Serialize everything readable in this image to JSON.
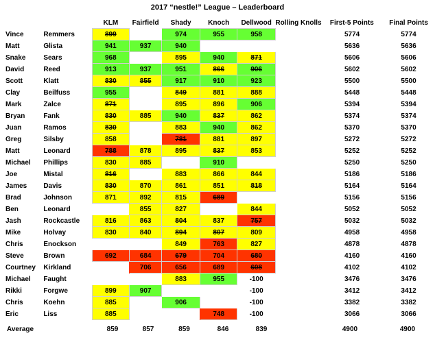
{
  "title": "2017 “nestle!” League – Leaderboard",
  "columns": [
    "KLM",
    "Fairfield",
    "Shady",
    "Knoch",
    "Dellwood",
    "Rolling Knolls",
    "First-5 Points",
    "Final Points"
  ],
  "rows": [
    {
      "first": "Vince",
      "last": "Remmers",
      "scores": [
        {
          "v": "899",
          "c": "y",
          "x": true
        },
        {
          "v": "",
          "c": "e"
        },
        {
          "v": "974",
          "c": "g"
        },
        {
          "v": "955",
          "c": "g"
        },
        {
          "v": "958",
          "c": "g"
        },
        {
          "v": "",
          "c": "e"
        }
      ],
      "first5": "5774",
      "final": "5774"
    },
    {
      "first": "Matt",
      "last": "Glista",
      "scores": [
        {
          "v": "941",
          "c": "g"
        },
        {
          "v": "937",
          "c": "g"
        },
        {
          "v": "940",
          "c": "g"
        },
        {
          "v": "",
          "c": "e"
        },
        {
          "v": "",
          "c": "e"
        },
        {
          "v": "",
          "c": "e"
        }
      ],
      "first5": "5636",
      "final": "5636"
    },
    {
      "first": "Snake",
      "last": "Sears",
      "scores": [
        {
          "v": "968",
          "c": "g"
        },
        {
          "v": "",
          "c": "e"
        },
        {
          "v": "895",
          "c": "y"
        },
        {
          "v": "940",
          "c": "g"
        },
        {
          "v": "871",
          "c": "y",
          "x": true
        },
        {
          "v": "",
          "c": "e"
        }
      ],
      "first5": "5606",
      "final": "5606"
    },
    {
      "first": "David",
      "last": "Reed",
      "scores": [
        {
          "v": "913",
          "c": "g"
        },
        {
          "v": "937",
          "c": "g"
        },
        {
          "v": "951",
          "c": "g"
        },
        {
          "v": "866",
          "c": "y",
          "x": true
        },
        {
          "v": "906",
          "c": "g",
          "x": true
        },
        {
          "v": "",
          "c": "e"
        }
      ],
      "first5": "5602",
      "final": "5602"
    },
    {
      "first": "Scott",
      "last": "Klatt",
      "scores": [
        {
          "v": "830",
          "c": "y",
          "x": true
        },
        {
          "v": "855",
          "c": "y",
          "x": true
        },
        {
          "v": "917",
          "c": "g"
        },
        {
          "v": "910",
          "c": "g"
        },
        {
          "v": "923",
          "c": "g"
        },
        {
          "v": "",
          "c": "e"
        }
      ],
      "first5": "5500",
      "final": "5500"
    },
    {
      "first": "Clay",
      "last": "Beilfuss",
      "scores": [
        {
          "v": "955",
          "c": "g"
        },
        {
          "v": "",
          "c": "e"
        },
        {
          "v": "849",
          "c": "y",
          "x": true
        },
        {
          "v": "881",
          "c": "y"
        },
        {
          "v": "888",
          "c": "y"
        },
        {
          "v": "",
          "c": "e"
        }
      ],
      "first5": "5448",
      "final": "5448"
    },
    {
      "first": "Mark",
      "last": "Zalce",
      "scores": [
        {
          "v": "871",
          "c": "y",
          "x": true
        },
        {
          "v": "",
          "c": "e"
        },
        {
          "v": "895",
          "c": "y"
        },
        {
          "v": "896",
          "c": "y"
        },
        {
          "v": "906",
          "c": "g"
        },
        {
          "v": "",
          "c": "e"
        }
      ],
      "first5": "5394",
      "final": "5394"
    },
    {
      "first": "Bryan",
      "last": "Fank",
      "scores": [
        {
          "v": "830",
          "c": "y",
          "x": true
        },
        {
          "v": "885",
          "c": "y"
        },
        {
          "v": "940",
          "c": "g"
        },
        {
          "v": "837",
          "c": "y",
          "x": true
        },
        {
          "v": "862",
          "c": "y"
        },
        {
          "v": "",
          "c": "e"
        }
      ],
      "first5": "5374",
      "final": "5374"
    },
    {
      "first": "Juan",
      "last": "Ramos",
      "scores": [
        {
          "v": "830",
          "c": "y",
          "x": true
        },
        {
          "v": "",
          "c": "e"
        },
        {
          "v": "883",
          "c": "y"
        },
        {
          "v": "940",
          "c": "g"
        },
        {
          "v": "862",
          "c": "y"
        },
        {
          "v": "",
          "c": "e"
        }
      ],
      "first5": "5370",
      "final": "5370"
    },
    {
      "first": "Greg",
      "last": "Silsby",
      "scores": [
        {
          "v": "858",
          "c": "y"
        },
        {
          "v": "",
          "c": "e"
        },
        {
          "v": "781",
          "c": "r",
          "x": true
        },
        {
          "v": "881",
          "c": "y"
        },
        {
          "v": "897",
          "c": "y"
        },
        {
          "v": "",
          "c": "e"
        }
      ],
      "first5": "5272",
      "final": "5272"
    },
    {
      "first": "Matt",
      "last": "Leonard",
      "scores": [
        {
          "v": "788",
          "c": "r",
          "x": true
        },
        {
          "v": "878",
          "c": "y"
        },
        {
          "v": "895",
          "c": "y"
        },
        {
          "v": "837",
          "c": "y",
          "x": true
        },
        {
          "v": "853",
          "c": "y"
        },
        {
          "v": "",
          "c": "e"
        }
      ],
      "first5": "5252",
      "final": "5252"
    },
    {
      "first": "Michael",
      "last": "Phillips",
      "scores": [
        {
          "v": "830",
          "c": "y"
        },
        {
          "v": "885",
          "c": "y"
        },
        {
          "v": "",
          "c": "e"
        },
        {
          "v": "910",
          "c": "g"
        },
        {
          "v": "",
          "c": "e"
        },
        {
          "v": "",
          "c": "e"
        }
      ],
      "first5": "5250",
      "final": "5250"
    },
    {
      "first": "Joe",
      "last": "Mistal",
      "scores": [
        {
          "v": "816",
          "c": "y",
          "x": true
        },
        {
          "v": "",
          "c": "e"
        },
        {
          "v": "883",
          "c": "y"
        },
        {
          "v": "866",
          "c": "y"
        },
        {
          "v": "844",
          "c": "y"
        },
        {
          "v": "",
          "c": "e"
        }
      ],
      "first5": "5186",
      "final": "5186"
    },
    {
      "first": "James",
      "last": "Davis",
      "scores": [
        {
          "v": "830",
          "c": "y",
          "x": true
        },
        {
          "v": "870",
          "c": "y"
        },
        {
          "v": "861",
          "c": "y"
        },
        {
          "v": "851",
          "c": "y"
        },
        {
          "v": "818",
          "c": "y",
          "x": true
        },
        {
          "v": "",
          "c": "e"
        }
      ],
      "first5": "5164",
      "final": "5164"
    },
    {
      "first": "Brad",
      "last": "Johnson",
      "scores": [
        {
          "v": "871",
          "c": "y"
        },
        {
          "v": "892",
          "c": "y"
        },
        {
          "v": "815",
          "c": "y"
        },
        {
          "v": "689",
          "c": "r",
          "x": true
        },
        {
          "v": "",
          "c": "e"
        },
        {
          "v": "",
          "c": "e"
        }
      ],
      "first5": "5156",
      "final": "5156"
    },
    {
      "first": "Ben",
      "last": "Leonard",
      "scores": [
        {
          "v": "",
          "c": "e"
        },
        {
          "v": "855",
          "c": "y"
        },
        {
          "v": "827",
          "c": "y"
        },
        {
          "v": "",
          "c": "e"
        },
        {
          "v": "844",
          "c": "y"
        },
        {
          "v": "",
          "c": "e"
        }
      ],
      "first5": "5052",
      "final": "5052"
    },
    {
      "first": "Jash",
      "last": "Rockcastle",
      "scores": [
        {
          "v": "816",
          "c": "y"
        },
        {
          "v": "863",
          "c": "y"
        },
        {
          "v": "804",
          "c": "y",
          "x": true
        },
        {
          "v": "837",
          "c": "y"
        },
        {
          "v": "757",
          "c": "r",
          "x": true
        },
        {
          "v": "",
          "c": "e"
        }
      ],
      "first5": "5032",
      "final": "5032"
    },
    {
      "first": "Mike",
      "last": "Holvay",
      "scores": [
        {
          "v": "830",
          "c": "y"
        },
        {
          "v": "840",
          "c": "y"
        },
        {
          "v": "894",
          "c": "y",
          "x": true
        },
        {
          "v": "807",
          "c": "y",
          "x": true
        },
        {
          "v": "809",
          "c": "y"
        },
        {
          "v": "",
          "c": "e"
        }
      ],
      "first5": "4958",
      "final": "4958"
    },
    {
      "first": "Chris",
      "last": "Enockson",
      "scores": [
        {
          "v": "",
          "c": "e"
        },
        {
          "v": "",
          "c": "e"
        },
        {
          "v": "849",
          "c": "y"
        },
        {
          "v": "763",
          "c": "r"
        },
        {
          "v": "827",
          "c": "y"
        },
        {
          "v": "",
          "c": "e"
        }
      ],
      "first5": "4878",
      "final": "4878"
    },
    {
      "first": "Steve",
      "last": "Brown",
      "scores": [
        {
          "v": "692",
          "c": "r"
        },
        {
          "v": "684",
          "c": "r"
        },
        {
          "v": "679",
          "c": "r",
          "x": true
        },
        {
          "v": "704",
          "c": "r"
        },
        {
          "v": "680",
          "c": "r",
          "x": true
        },
        {
          "v": "",
          "c": "e"
        }
      ],
      "first5": "4160",
      "final": "4160"
    },
    {
      "first": "Courtney",
      "last": "Kirkland",
      "scores": [
        {
          "v": "",
          "c": "e"
        },
        {
          "v": "706",
          "c": "r"
        },
        {
          "v": "656",
          "c": "r"
        },
        {
          "v": "689",
          "c": "r"
        },
        {
          "v": "608",
          "c": "r",
          "x": true
        },
        {
          "v": "",
          "c": "e"
        }
      ],
      "first5": "4102",
      "final": "4102"
    },
    {
      "first": "Michael",
      "last": "Faught",
      "scores": [
        {
          "v": "",
          "c": "e"
        },
        {
          "v": "",
          "c": "e"
        },
        {
          "v": "883",
          "c": "y"
        },
        {
          "v": "955",
          "c": "g"
        },
        {
          "v": "-100",
          "c": "e"
        },
        {
          "v": "",
          "c": "e"
        }
      ],
      "first5": "3476",
      "final": "3476"
    },
    {
      "first": "Rikki",
      "last": "Forgwe",
      "scores": [
        {
          "v": "899",
          "c": "y"
        },
        {
          "v": "907",
          "c": "g"
        },
        {
          "v": "",
          "c": "e"
        },
        {
          "v": "",
          "c": "e"
        },
        {
          "v": "-100",
          "c": "e"
        },
        {
          "v": "",
          "c": "e"
        }
      ],
      "first5": "3412",
      "final": "3412"
    },
    {
      "first": "Chris",
      "last": "Koehn",
      "scores": [
        {
          "v": "885",
          "c": "y"
        },
        {
          "v": "",
          "c": "e"
        },
        {
          "v": "906",
          "c": "g"
        },
        {
          "v": "",
          "c": "e"
        },
        {
          "v": "-100",
          "c": "e"
        },
        {
          "v": "",
          "c": "e"
        }
      ],
      "first5": "3382",
      "final": "3382"
    },
    {
      "first": "Eric",
      "last": "Liss",
      "scores": [
        {
          "v": "885",
          "c": "y"
        },
        {
          "v": "",
          "c": "e"
        },
        {
          "v": "",
          "c": "e"
        },
        {
          "v": "748",
          "c": "r"
        },
        {
          "v": "-100",
          "c": "e"
        },
        {
          "v": "",
          "c": "e"
        }
      ],
      "first5": "3066",
      "final": "3066"
    }
  ],
  "average": {
    "label": "Average",
    "values": [
      "859",
      "857",
      "859",
      "846",
      "839",
      ""
    ],
    "first5": "4900",
    "final": "4900"
  },
  "colors": {
    "high": "#66ff33",
    "mid": "#ffff00",
    "low": "#ff3300"
  }
}
